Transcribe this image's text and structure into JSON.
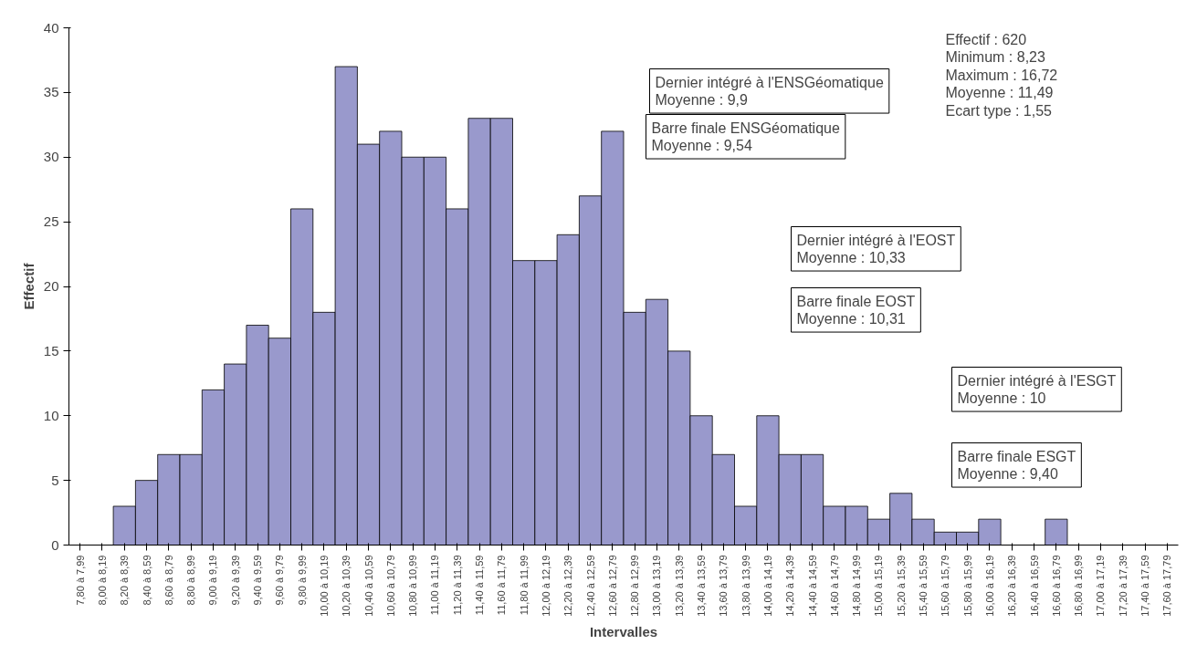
{
  "chart_data": {
    "type": "bar",
    "xlabel": "Intervalles",
    "ylabel": "Effectif",
    "categories": [
      "7,80 à 7,99",
      "8,00 à 8,19",
      "8,20 à 8,39",
      "8,40 à 8,59",
      "8,60 à 8,79",
      "8,80 à 8,99",
      "9,00 à 9,19",
      "9,20 à 9,39",
      "9,40 à 9,59",
      "9,60 à 9,79",
      "9,80 à 9,99",
      "10,00 à 10,19",
      "10,20 à 10,39",
      "10,40 à 10,59",
      "10,60 à 10,79",
      "10,80 à 10,99",
      "11,00 à 11,19",
      "11,20 à 11,39",
      "11,40 à 11,59",
      "11,60 à 11,79",
      "11,80 à 11,99",
      "12,00 à 12,19",
      "12,20 à 12,39",
      "12,40 à 12,59",
      "12,60 à 12,79",
      "12,80 à 12,99",
      "13,00 à 13,19",
      "13,20 à 13,39",
      "13,40 à 13,59",
      "13,60 à 13,79",
      "13,80 à 13,99",
      "14,00 à 14,19",
      "14,20 à 14,39",
      "14,40 à 14,59",
      "14,60 à 14,79",
      "14,80 à 14,99",
      "15,00 à 15,19",
      "15,20 à 15,39",
      "15,40 à 15,59",
      "15,60 à 15,79",
      "15,80 à 15,99",
      "16,00 à 16,19",
      "16,20 à 16,39",
      "16,40 à 16,59",
      "16,60 à 16,79",
      "16,80 à 16,99",
      "17,00 à 17,19",
      "17,20 à 17,39",
      "17,40 à 17,59",
      "17,60 à 17,79"
    ],
    "values": [
      0,
      0,
      3,
      5,
      7,
      7,
      12,
      14,
      17,
      16,
      26,
      18,
      37,
      31,
      32,
      30,
      30,
      26,
      33,
      33,
      22,
      22,
      24,
      27,
      32,
      18,
      19,
      15,
      10,
      7,
      3,
      10,
      7,
      7,
      3,
      3,
      2,
      4,
      2,
      1,
      1,
      2,
      0,
      0,
      2,
      0,
      0,
      0,
      0,
      0
    ],
    "color": "#9999cc",
    "ylim": [
      0,
      40
    ],
    "yticks": [
      0,
      5,
      10,
      15,
      20,
      25,
      30,
      35,
      40
    ],
    "grid": false,
    "annotations": [
      "Effectif : 620\nMinimum : 8,23\nMaximum : 16,72\nMoyenne : 11,49\nEcart type : 1,55",
      "Dernier intégré à l'ENSGéomatique\nMoyenne : 9,9",
      "Barre finale ENSGéomatique\nMoyenne : 9,54",
      "Dernier intégré à l'EOST\nMoyenne : 10,33",
      "Barre finale EOST\nMoyenne : 10,31",
      "Dernier intégré à l'ESGT\nMoyenne : 10",
      "Barre finale ESGT\nMoyenne : 9,40"
    ]
  }
}
